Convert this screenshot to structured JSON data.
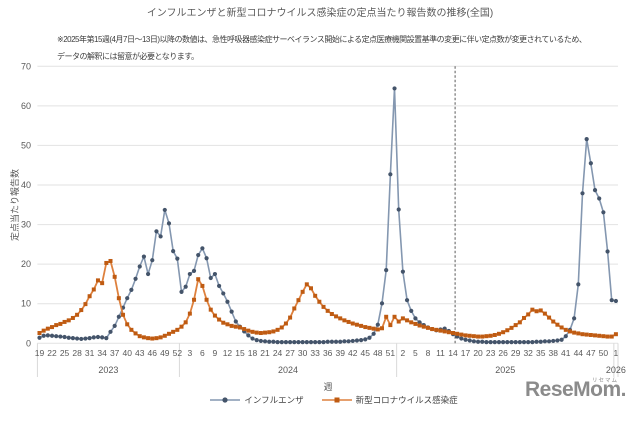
{
  "title": "インフルエンザと新型コロナウイルス感染症の定点当たり報告数の推移(全国)",
  "note": {
    "line1": "※2025年第15週(4月7日〜13日)以降の数値は、急性呼吸器感染症サーベイランス開始による定点医療機関設置基準の変更に伴い定点数が変更されているため、",
    "line2": "データの解釈には留意が必要となります。"
  },
  "logo": {
    "text": "ReseMom.",
    "furigana": "リセマム",
    "color": "#8B8B8B"
  },
  "chart_data": {
    "type": "line",
    "title": "インフルエンザと新型コロナウイルス感染症の定点当たり報告数の推移(全国)",
    "xlabel": "週",
    "ylabel": "定点当たり報告数",
    "ylim": [
      0,
      70
    ],
    "ytick_step": 10,
    "grid": true,
    "legend_position": "bottom",
    "x_years": [
      {
        "year": "2023",
        "first_week": 19,
        "num_weeks": 34
      },
      {
        "year": "2024",
        "first_week": 1,
        "num_weeks": 52
      },
      {
        "year": "2025",
        "first_week": 1,
        "num_weeks": 52
      },
      {
        "year": "2026",
        "first_week": 1,
        "num_weeks": 1
      }
    ],
    "tick_every": 3,
    "annotation_vline": {
      "year": "2025",
      "after_week": 14,
      "style": "dashed",
      "color": "#595959"
    },
    "series": [
      {
        "name": "インフルエンザ",
        "marker": "circle",
        "line_color": "#8497B0",
        "marker_color": "#44546A",
        "values": [
          1.4,
          1.9,
          2.0,
          1.9,
          1.8,
          1.7,
          1.6,
          1.4,
          1.3,
          1.2,
          1.1,
          1.2,
          1.3,
          1.5,
          1.6,
          1.5,
          1.3,
          2.9,
          4.4,
          6.7,
          9.0,
          11.4,
          13.5,
          16.3,
          19.4,
          21.9,
          17.5,
          21.0,
          28.3,
          27.0,
          33.7,
          30.3,
          23.3,
          21.4,
          13.0,
          14.3,
          17.5,
          18.3,
          22.3,
          24.0,
          21.5,
          16.5,
          17.5,
          14.5,
          12.6,
          10.5,
          8.0,
          5.5,
          4.2,
          3.0,
          2.0,
          1.2,
          0.8,
          0.6,
          0.5,
          0.4,
          0.4,
          0.3,
          0.3,
          0.3,
          0.3,
          0.3,
          0.3,
          0.3,
          0.3,
          0.3,
          0.3,
          0.3,
          0.3,
          0.4,
          0.4,
          0.4,
          0.4,
          0.5,
          0.5,
          0.6,
          0.7,
          0.8,
          1.0,
          1.4,
          2.4,
          4.7,
          10.1,
          18.5,
          42.7,
          64.4,
          33.8,
          18.1,
          10.9,
          8.2,
          6.3,
          5.3,
          4.6,
          4.0,
          3.6,
          3.3,
          3.5,
          3.7,
          3.1,
          2.3,
          1.7,
          1.2,
          0.9,
          0.7,
          0.5,
          0.4,
          0.4,
          0.3,
          0.3,
          0.3,
          0.3,
          0.3,
          0.3,
          0.3,
          0.3,
          0.3,
          0.3,
          0.3,
          0.3,
          0.4,
          0.4,
          0.5,
          0.5,
          0.6,
          0.7,
          0.9,
          1.8,
          3.4,
          6.3,
          14.9,
          37.9,
          51.6,
          45.5,
          38.7,
          36.6,
          33.1,
          23.2,
          10.9,
          10.7
        ]
      },
      {
        "name": "新型コロナウイルス感染症",
        "marker": "square",
        "line_color": "#DE813E",
        "marker_color": "#BF5B12",
        "values": [
          2.6,
          3.2,
          3.7,
          4.1,
          4.6,
          4.9,
          5.4,
          5.8,
          6.4,
          7.2,
          8.4,
          9.9,
          11.9,
          13.6,
          15.9,
          15.2,
          20.3,
          20.8,
          16.8,
          11.4,
          7.2,
          4.8,
          3.4,
          2.5,
          1.8,
          1.5,
          1.3,
          1.2,
          1.3,
          1.5,
          1.9,
          2.4,
          2.9,
          3.4,
          4.2,
          5.3,
          7.5,
          11.0,
          16.2,
          14.5,
          11.0,
          8.5,
          7.0,
          6.0,
          5.2,
          4.8,
          4.4,
          4.2,
          4.0,
          3.6,
          3.2,
          2.9,
          2.7,
          2.6,
          2.7,
          2.8,
          3.0,
          3.4,
          4.0,
          5.0,
          6.5,
          8.8,
          10.9,
          13.0,
          14.9,
          13.9,
          12.0,
          10.5,
          9.2,
          8.2,
          7.4,
          6.8,
          6.3,
          5.8,
          5.4,
          5.0,
          4.7,
          4.4,
          4.1,
          3.9,
          3.7,
          3.5,
          3.8,
          6.7,
          4.6,
          6.7,
          5.5,
          6.3,
          5.8,
          5.3,
          4.9,
          4.5,
          4.2,
          3.9,
          3.6,
          3.4,
          3.2,
          3.0,
          2.8,
          2.6,
          2.4,
          2.2,
          2.0,
          1.9,
          1.8,
          1.7,
          1.7,
          1.8,
          1.9,
          2.1,
          2.4,
          2.8,
          3.3,
          3.9,
          4.6,
          5.3,
          6.4,
          7.3,
          8.5,
          8.1,
          8.3,
          7.5,
          6.5,
          5.5,
          4.7,
          4.0,
          3.4,
          3.0,
          2.7,
          2.5,
          2.3,
          2.2,
          2.1,
          2.0,
          1.9,
          1.8,
          1.7,
          1.7,
          2.3
        ]
      }
    ]
  }
}
